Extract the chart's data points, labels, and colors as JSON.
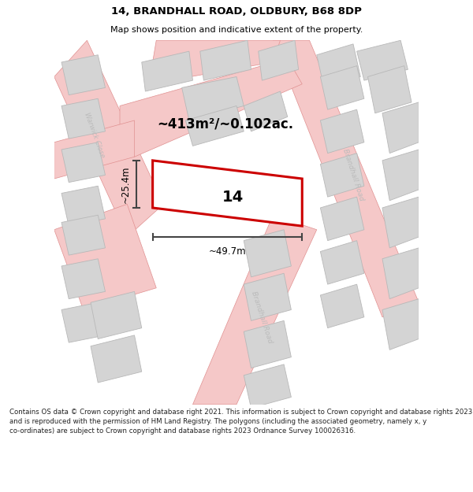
{
  "title_line1": "14, BRANDHALL ROAD, OLDBURY, B68 8DP",
  "title_line2": "Map shows position and indicative extent of the property.",
  "footer_text": "Contains OS data © Crown copyright and database right 2021. This information is subject to Crown copyright and database rights 2023 and is reproduced with the permission of HM Land Registry. The polygons (including the associated geometry, namely x, y co-ordinates) are subject to Crown copyright and database rights 2023 Ordnance Survey 100026316.",
  "area_label": "~413m²/~0.102ac.",
  "width_label": "~49.7m",
  "height_label": "~25.4m",
  "plot_number": "14",
  "bg_color": "#ffffff",
  "map_bg": "#f5f5f5",
  "road_color": "#f5c8c8",
  "road_edge_color": "#e09090",
  "building_fill": "#d4d4d4",
  "building_edge": "#b8b8b8",
  "plot_color": "#cc0000",
  "plot_lw": 2.2,
  "dim_color": "#444444",
  "road_label_color": "#bbbbbb",
  "title_fs": 9.5,
  "sub_fs": 8.0,
  "footer_fs": 6.2,
  "area_fs": 12,
  "dim_fs": 8.5,
  "plot_num_fs": 14
}
